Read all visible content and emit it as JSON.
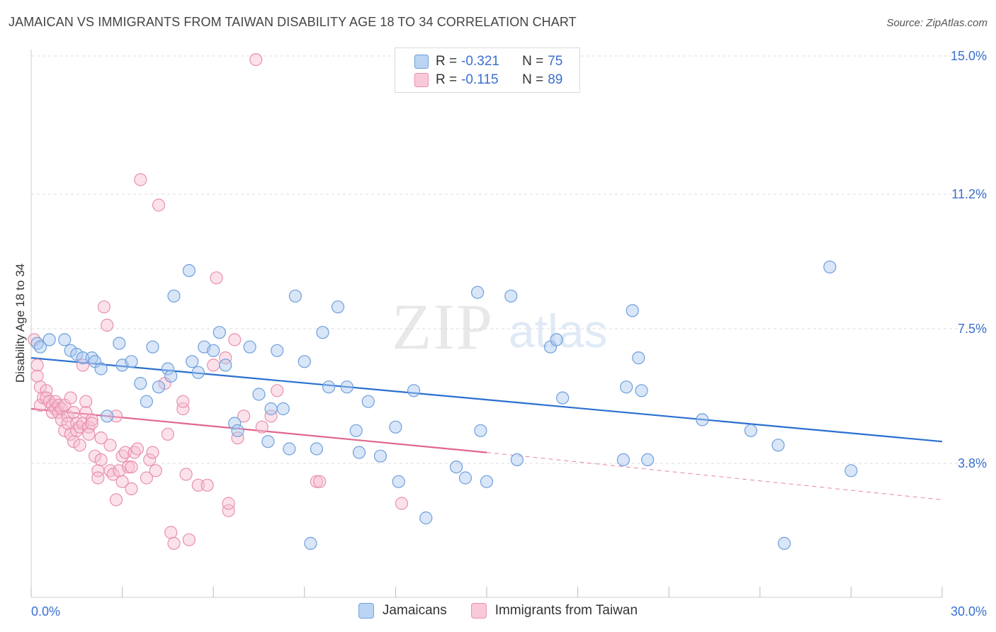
{
  "title": "JAMAICAN VS IMMIGRANTS FROM TAIWAN DISABILITY AGE 18 TO 34 CORRELATION CHART",
  "source": "Source: ZipAtlas.com",
  "watermark": {
    "zip": "ZIP",
    "atlas": "atlas"
  },
  "legend": {
    "r_label": "R =",
    "n_label": "N =",
    "jamaicans": {
      "r": "-0.321",
      "n": "75"
    },
    "taiwan": {
      "r": "-0.115",
      "n": "89"
    }
  },
  "colors": {
    "blue_fill": "#a9c8f0",
    "blue_stroke": "#6f9fdc",
    "blue_line": "#2a6fd0",
    "pink_fill": "#f7bfd0",
    "pink_stroke": "#e98fae",
    "pink_line": "#e0658f",
    "axis_label": "#3a6fcf"
  },
  "chart_data": {
    "type": "scatter",
    "title": "JAMAICAN VS IMMIGRANTS FROM TAIWAN DISABILITY AGE 18 TO 34 CORRELATION CHART",
    "xlabel": "",
    "ylabel": "Disability Age 18 to 34",
    "xlim": [
      0,
      30
    ],
    "ylim": [
      0,
      15.7
    ],
    "x_tick_labels": [
      "0.0%",
      "30.0%"
    ],
    "y_ticks": [
      3.8,
      7.5,
      11.2,
      15.0
    ],
    "y_tick_labels": [
      "3.8%",
      "7.5%",
      "11.2%",
      "15.0%"
    ],
    "grid": "horizontal dashed",
    "legend_position": "top-center",
    "series": [
      {
        "name": "Jamaicans",
        "r": -0.321,
        "n": 75,
        "trend": {
          "x": [
            0,
            30
          ],
          "y": [
            6.7,
            4.4
          ]
        },
        "points": [
          [
            0.2,
            7.1
          ],
          [
            0.3,
            7.0
          ],
          [
            0.6,
            7.2
          ],
          [
            1.1,
            7.2
          ],
          [
            1.3,
            6.9
          ],
          [
            1.5,
            6.8
          ],
          [
            1.7,
            6.7
          ],
          [
            2.0,
            6.7
          ],
          [
            2.1,
            6.6
          ],
          [
            2.3,
            6.4
          ],
          [
            2.5,
            5.1
          ],
          [
            2.9,
            7.1
          ],
          [
            3.0,
            6.5
          ],
          [
            3.3,
            6.6
          ],
          [
            3.6,
            6.0
          ],
          [
            3.8,
            5.5
          ],
          [
            4.0,
            7.0
          ],
          [
            4.2,
            5.9
          ],
          [
            4.5,
            6.4
          ],
          [
            4.6,
            6.2
          ],
          [
            4.7,
            8.4
          ],
          [
            5.2,
            9.1
          ],
          [
            5.3,
            6.6
          ],
          [
            5.5,
            6.3
          ],
          [
            5.7,
            7.0
          ],
          [
            6.0,
            6.9
          ],
          [
            6.2,
            7.4
          ],
          [
            6.4,
            6.5
          ],
          [
            6.7,
            4.9
          ],
          [
            6.8,
            4.7
          ],
          [
            7.2,
            7.0
          ],
          [
            7.5,
            5.7
          ],
          [
            7.8,
            4.4
          ],
          [
            7.9,
            5.3
          ],
          [
            8.1,
            6.9
          ],
          [
            8.3,
            5.3
          ],
          [
            8.5,
            4.2
          ],
          [
            8.7,
            8.4
          ],
          [
            9.0,
            6.6
          ],
          [
            9.2,
            1.6
          ],
          [
            9.4,
            4.2
          ],
          [
            9.6,
            7.4
          ],
          [
            9.8,
            5.9
          ],
          [
            10.1,
            8.1
          ],
          [
            10.4,
            5.9
          ],
          [
            10.7,
            4.7
          ],
          [
            10.8,
            4.1
          ],
          [
            11.1,
            5.5
          ],
          [
            11.5,
            4.0
          ],
          [
            12.0,
            4.8
          ],
          [
            12.1,
            3.3
          ],
          [
            12.6,
            5.8
          ],
          [
            13.0,
            2.3
          ],
          [
            14.0,
            3.7
          ],
          [
            14.3,
            3.4
          ],
          [
            14.7,
            8.5
          ],
          [
            14.8,
            4.7
          ],
          [
            15.0,
            3.3
          ],
          [
            15.8,
            8.4
          ],
          [
            16.0,
            3.9
          ],
          [
            17.1,
            7.0
          ],
          [
            17.3,
            7.2
          ],
          [
            17.5,
            5.6
          ],
          [
            19.5,
            3.9
          ],
          [
            19.6,
            5.9
          ],
          [
            19.8,
            8.0
          ],
          [
            20.0,
            6.7
          ],
          [
            20.1,
            5.8
          ],
          [
            20.3,
            3.9
          ],
          [
            22.1,
            5.0
          ],
          [
            23.7,
            4.7
          ],
          [
            24.6,
            4.3
          ],
          [
            24.8,
            1.6
          ],
          [
            26.3,
            9.2
          ],
          [
            27.0,
            3.6
          ]
        ]
      },
      {
        "name": "Immigrants from Taiwan",
        "r": -0.115,
        "n": 89,
        "trend": {
          "x": [
            0,
            15
          ],
          "y": [
            5.3,
            4.1
          ]
        },
        "trend_dashed": {
          "x": [
            15,
            30
          ],
          "y": [
            4.1,
            2.8
          ]
        },
        "points": [
          [
            0.1,
            7.2
          ],
          [
            0.2,
            6.5
          ],
          [
            0.2,
            6.2
          ],
          [
            0.3,
            5.9
          ],
          [
            0.3,
            5.4
          ],
          [
            0.4,
            5.6
          ],
          [
            0.5,
            5.8
          ],
          [
            0.5,
            5.6
          ],
          [
            0.6,
            5.5
          ],
          [
            0.7,
            5.4
          ],
          [
            0.7,
            5.2
          ],
          [
            0.8,
            5.5
          ],
          [
            0.8,
            5.3
          ],
          [
            0.9,
            5.4
          ],
          [
            0.9,
            5.2
          ],
          [
            1.0,
            5.0
          ],
          [
            1.0,
            5.3
          ],
          [
            1.1,
            5.4
          ],
          [
            1.1,
            4.7
          ],
          [
            1.2,
            5.1
          ],
          [
            1.2,
            4.9
          ],
          [
            1.3,
            4.6
          ],
          [
            1.3,
            5.6
          ],
          [
            1.4,
            4.4
          ],
          [
            1.4,
            5.2
          ],
          [
            1.5,
            4.9
          ],
          [
            1.5,
            4.7
          ],
          [
            1.6,
            4.8
          ],
          [
            1.6,
            4.3
          ],
          [
            1.7,
            6.5
          ],
          [
            1.7,
            4.9
          ],
          [
            1.8,
            5.2
          ],
          [
            1.8,
            5.5
          ],
          [
            1.9,
            4.8
          ],
          [
            1.9,
            4.6
          ],
          [
            2.0,
            5.0
          ],
          [
            2.0,
            4.9
          ],
          [
            2.1,
            4.0
          ],
          [
            2.2,
            3.6
          ],
          [
            2.2,
            3.4
          ],
          [
            2.3,
            4.5
          ],
          [
            2.3,
            3.9
          ],
          [
            2.4,
            8.1
          ],
          [
            2.5,
            7.6
          ],
          [
            2.6,
            4.3
          ],
          [
            2.6,
            3.6
          ],
          [
            2.7,
            3.5
          ],
          [
            2.8,
            5.1
          ],
          [
            2.8,
            2.8
          ],
          [
            2.9,
            3.6
          ],
          [
            3.0,
            3.3
          ],
          [
            3.0,
            4.0
          ],
          [
            3.1,
            4.1
          ],
          [
            3.2,
            3.7
          ],
          [
            3.3,
            3.1
          ],
          [
            3.3,
            3.7
          ],
          [
            3.4,
            4.1
          ],
          [
            3.5,
            4.2
          ],
          [
            3.6,
            11.6
          ],
          [
            3.8,
            3.4
          ],
          [
            3.9,
            3.9
          ],
          [
            4.0,
            4.1
          ],
          [
            4.1,
            3.6
          ],
          [
            4.2,
            10.9
          ],
          [
            4.4,
            6.0
          ],
          [
            4.5,
            4.6
          ],
          [
            4.6,
            1.9
          ],
          [
            4.7,
            1.6
          ],
          [
            5.0,
            5.3
          ],
          [
            5.0,
            5.5
          ],
          [
            5.1,
            3.5
          ],
          [
            5.2,
            1.7
          ],
          [
            5.5,
            3.2
          ],
          [
            5.8,
            3.2
          ],
          [
            6.0,
            6.5
          ],
          [
            6.1,
            8.9
          ],
          [
            6.4,
            6.7
          ],
          [
            6.5,
            2.5
          ],
          [
            6.5,
            2.7
          ],
          [
            6.7,
            7.2
          ],
          [
            6.8,
            4.5
          ],
          [
            7.0,
            5.1
          ],
          [
            7.4,
            14.9
          ],
          [
            7.6,
            4.8
          ],
          [
            7.9,
            5.1
          ],
          [
            8.1,
            5.8
          ],
          [
            9.4,
            3.3
          ],
          [
            9.5,
            3.3
          ],
          [
            12.2,
            2.7
          ]
        ]
      }
    ]
  },
  "bottom_legend": {
    "jamaicans": "Jamaicans",
    "taiwan": "Immigrants from Taiwan"
  }
}
